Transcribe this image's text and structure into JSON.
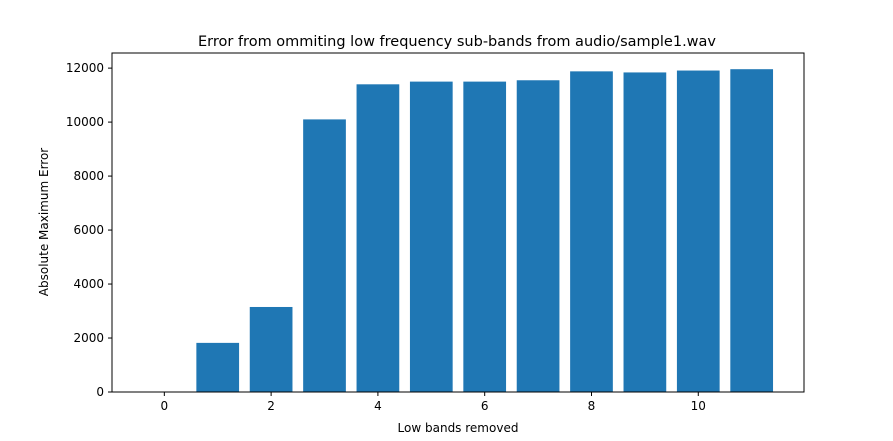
{
  "chart_data": {
    "type": "bar",
    "title": "Error from ommiting low frequency sub-bands from audio/sample1.wav",
    "xlabel": "Low bands removed",
    "ylabel": "Absolute Maximum Error",
    "x": [
      0,
      1,
      2,
      3,
      4,
      5,
      6,
      7,
      8,
      9,
      10,
      11
    ],
    "values": [
      0,
      1820,
      3150,
      10100,
      11400,
      11500,
      11500,
      11550,
      11880,
      11840,
      11910,
      11960
    ],
    "xticks": [
      0,
      2,
      4,
      6,
      8,
      10
    ],
    "yticks": [
      0,
      2000,
      4000,
      6000,
      8000,
      10000,
      12000
    ],
    "xlim": [
      -0.98,
      11.98
    ],
    "ylim": [
      0,
      12560
    ],
    "bar_color": "#1f77b4",
    "grid": false,
    "legend": "none"
  }
}
